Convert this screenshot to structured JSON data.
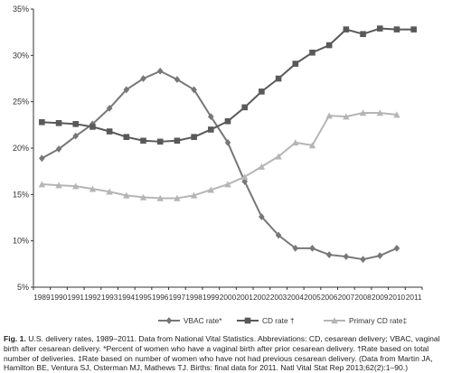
{
  "chart_data": {
    "type": "line",
    "x": [
      "1989",
      "1990",
      "1991",
      "1992",
      "1993",
      "1994",
      "1995",
      "1996",
      "1997",
      "1998",
      "1999",
      "2000",
      "2001",
      "2002",
      "2003",
      "2004",
      "2005",
      "2006",
      "2007",
      "2008",
      "2009",
      "2010",
      "2011"
    ],
    "ylim": [
      5,
      35
    ],
    "yticks": [
      "5%",
      "10%",
      "15%",
      "20%",
      "25%",
      "30%",
      "35%"
    ],
    "ytick_values": [
      5,
      10,
      15,
      20,
      25,
      30,
      35
    ],
    "grid": false,
    "legend_position": "bottom",
    "series": [
      {
        "name": "VBAC rate*",
        "color": "#777777",
        "marker": "diamond",
        "values": [
          18.9,
          19.9,
          21.3,
          22.6,
          24.3,
          26.3,
          27.5,
          28.3,
          27.4,
          26.3,
          23.4,
          20.6,
          16.4,
          12.6,
          10.6,
          9.2,
          9.2,
          8.5,
          8.3,
          8.0,
          8.4,
          9.2,
          null
        ]
      },
      {
        "name": "CD rate †",
        "color": "#595959",
        "marker": "square",
        "values": [
          22.8,
          22.7,
          22.6,
          22.3,
          21.8,
          21.2,
          20.8,
          20.7,
          20.8,
          21.2,
          22.0,
          22.9,
          24.4,
          26.1,
          27.5,
          29.1,
          30.3,
          31.1,
          32.8,
          32.3,
          32.9,
          32.8,
          32.8
        ]
      },
      {
        "name": "Primary CD rate‡",
        "color": "#b5b5b5",
        "marker": "triangle",
        "values": [
          16.1,
          16.0,
          15.9,
          15.6,
          15.3,
          14.9,
          14.7,
          14.6,
          14.6,
          14.9,
          15.5,
          16.1,
          16.9,
          18.0,
          19.1,
          20.6,
          20.3,
          23.5,
          23.4,
          23.8,
          23.8,
          23.6,
          null
        ]
      }
    ]
  },
  "caption": {
    "label": "Fig. 1.",
    "text": " U.S. delivery rates, 1989–2011. Data from National Vital Statistics. Abbreviations: CD, cesarean delivery; VBAC, vaginal birth after cesarean delivery. *Percent of women who have a vaginal birth after prior cesarean delivery. †Rate based on total number of deliveries. ‡Rate based on number of women who have not had previous cesarean delivery. (Data from Martin JA, Hamilton BE, Ventura SJ, Osterman MJ, Mathews TJ. Births: final data for 2011. Natl Vital Stat Rep 2013;62(2):1–90.)"
  }
}
